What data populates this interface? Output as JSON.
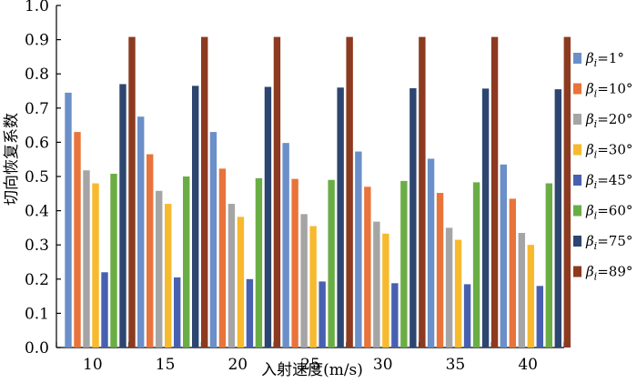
{
  "chart_data": {
    "type": "bar",
    "xlabel": "入射速度(m/s)",
    "ylabel": "切向恢复系数",
    "ylim": [
      0,
      1.0
    ],
    "yticks": [
      "0.0",
      "0.1",
      "0.2",
      "0.3",
      "0.4",
      "0.5",
      "0.6",
      "0.7",
      "0.8",
      "0.9",
      "1.0"
    ],
    "categories": [
      "10",
      "15",
      "20",
      "25",
      "30",
      "35",
      "40"
    ],
    "grid": false,
    "legend_position": "right",
    "series": [
      {
        "name": "βi=1°",
        "color": "#6b8fc8",
        "values": [
          0.745,
          0.675,
          0.63,
          0.598,
          0.573,
          0.552,
          0.535
        ]
      },
      {
        "name": "βi=10°",
        "color": "#e8743b",
        "values": [
          0.63,
          0.565,
          0.523,
          0.493,
          0.47,
          0.452,
          0.435
        ]
      },
      {
        "name": "βi=20°",
        "color": "#a5a5a5",
        "values": [
          0.518,
          0.458,
          0.42,
          0.39,
          0.368,
          0.35,
          0.335
        ]
      },
      {
        "name": "βi=30°",
        "color": "#f7b92e",
        "values": [
          0.48,
          0.42,
          0.382,
          0.355,
          0.333,
          0.315,
          0.3
        ]
      },
      {
        "name": "βi=45°",
        "color": "#4760b0",
        "values": [
          0.22,
          0.205,
          0.2,
          0.193,
          0.188,
          0.185,
          0.18
        ]
      },
      {
        "name": "βi=60°",
        "color": "#6aad45",
        "values": [
          0.508,
          0.5,
          0.495,
          0.49,
          0.487,
          0.483,
          0.48
        ]
      },
      {
        "name": "βi=75°",
        "color": "#2c4670",
        "values": [
          0.77,
          0.765,
          0.762,
          0.76,
          0.758,
          0.757,
          0.755
        ]
      },
      {
        "name": "βi=89°",
        "color": "#8c3a20",
        "values": [
          0.908,
          0.908,
          0.908,
          0.908,
          0.908,
          0.908,
          0.908
        ]
      }
    ]
  }
}
